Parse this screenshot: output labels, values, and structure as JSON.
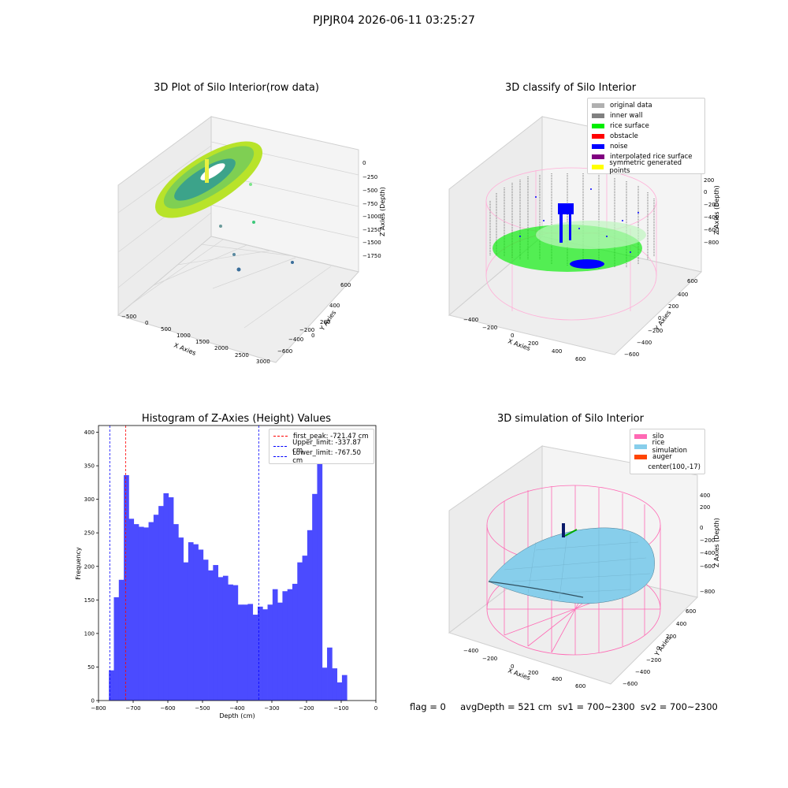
{
  "suptitle": "PJPJR04 2026-06-11 03:25:27",
  "footer": "flag = 0     avgDepth = 521 cm  sv1 = 700~2300  sv2 = 700~2300",
  "panels": {
    "raw": {
      "title": "3D Plot of Silo Interior(row data)",
      "xlabel": "X Axies",
      "ylabel": "Y Axies",
      "zlabel": "Z Axies (Depth)",
      "xticks": [
        "−500",
        "0",
        "500",
        "1000",
        "1500",
        "2000",
        "2500",
        "3000"
      ],
      "yticks": [
        "600",
        "400",
        "200",
        "0",
        "−200",
        "−400",
        "−600"
      ],
      "zticks": [
        "0",
        "−250",
        "−500",
        "−750",
        "−1000",
        "−1250",
        "−1500",
        "−1750"
      ]
    },
    "classify": {
      "title": "3D classify of Silo Interior",
      "xlabel": "X Axies",
      "ylabel": "Y Axies",
      "zlabel": "Z Axies (Depth)",
      "xticks": [
        "−400",
        "−200",
        "0",
        "200",
        "400",
        "600"
      ],
      "yticks": [
        "600",
        "400",
        "200",
        "0",
        "−200",
        "−400",
        "−600"
      ],
      "zticks": [
        "200",
        "0",
        "−200",
        "−400",
        "−600",
        "−800"
      ],
      "legend": [
        {
          "label": "original data",
          "color": "#b0b0b0"
        },
        {
          "label": "inner wall",
          "color": "#808080"
        },
        {
          "label": "rice surface",
          "color": "#00ee00"
        },
        {
          "label": "obstacle",
          "color": "#ff0000"
        },
        {
          "label": "noise",
          "color": "#0000ff"
        },
        {
          "label": "interpolated rice surface",
          "color": "#800080"
        },
        {
          "label": "symmetric generated points",
          "color": "#ffff00"
        }
      ]
    },
    "hist": {
      "title": "Histogram of Z-Axies (Height) Values",
      "legend": [
        {
          "label": "first_peak: -721.47 cm",
          "color": "#ff0000"
        },
        {
          "label": "Upper_limit: -337.87 cm",
          "color": "#0000ff"
        },
        {
          "label": "Lower_limit: -767.50 cm",
          "color": "#0000ff"
        }
      ]
    },
    "sim": {
      "title": "3D simulation of Silo Interior",
      "xlabel": "X Axies",
      "ylabel": "Y Axies",
      "zlabel": "Z Axies (Depth)",
      "xticks": [
        "−400",
        "−200",
        "0",
        "200",
        "400",
        "600"
      ],
      "yticks": [
        "600",
        "400",
        "200",
        "0",
        "−200",
        "−400",
        "−600"
      ],
      "zticks": [
        "400",
        "200",
        "0",
        "−200",
        "−400",
        "−600",
        "−800"
      ],
      "legend": [
        {
          "label": "silo",
          "color": "#ff69b4"
        },
        {
          "label": "rice simulation",
          "color": "#87ceeb"
        },
        {
          "label": "auger",
          "color": "#ff4500"
        },
        {
          "label": "center(100,-17)",
          "color": ""
        }
      ]
    }
  },
  "chart_data": {
    "type": "bar",
    "xlabel": "Depth (cm)",
    "ylabel": "Frequency",
    "xlim": [
      -800,
      0
    ],
    "ylim": [
      0,
      410
    ],
    "xticks": [
      -800,
      -700,
      -600,
      -500,
      -400,
      -300,
      -200,
      -100,
      0
    ],
    "yticks": [
      0,
      50,
      100,
      150,
      200,
      250,
      300,
      350,
      400
    ],
    "bar_color": "#4b4bff",
    "bin_edges_start": -770,
    "bin_width": 14.3,
    "values": [
      45,
      154,
      180,
      336,
      271,
      263,
      259,
      258,
      266,
      277,
      290,
      309,
      303,
      263,
      243,
      206,
      236,
      233,
      225,
      210,
      194,
      202,
      184,
      186,
      173,
      172,
      143,
      143,
      144,
      128,
      140,
      136,
      143,
      166,
      146,
      163,
      166,
      174,
      206,
      216,
      254,
      308,
      386,
      49,
      79,
      48,
      27,
      38
    ],
    "vlines": [
      {
        "x": -721.47,
        "color": "#ff0000",
        "label": "first_peak: -721.47 cm"
      },
      {
        "x": -337.87,
        "color": "#0000ff",
        "label": "Upper_limit: -337.87 cm"
      },
      {
        "x": -767.5,
        "color": "#0000ff",
        "label": "Lower_limit: -767.50 cm"
      }
    ],
    "legend_position": "upper right"
  }
}
